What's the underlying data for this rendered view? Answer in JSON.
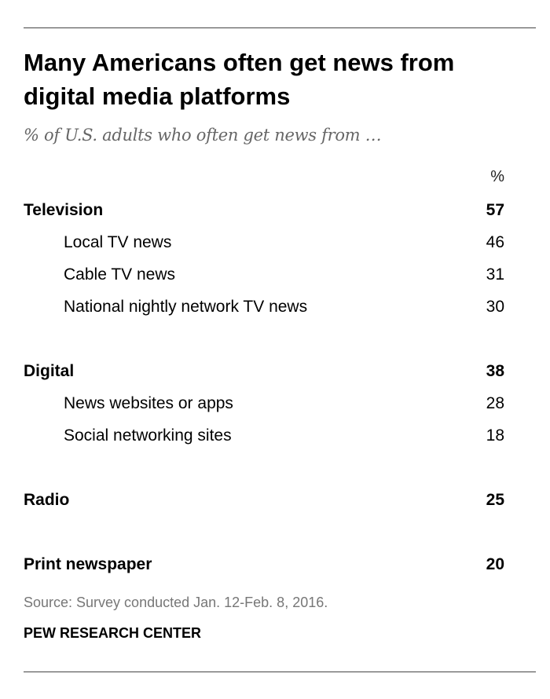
{
  "chart_data": {
    "type": "table",
    "title": "Many Americans often get news from digital media platforms",
    "subtitle": "% of U.S. adults who often get news from …",
    "unit_header": "%",
    "rows": [
      {
        "label": "Television",
        "value": 57,
        "level": "category"
      },
      {
        "label": "Local TV news",
        "value": 46,
        "level": "sub"
      },
      {
        "label": "Cable TV news",
        "value": 31,
        "level": "sub"
      },
      {
        "label": "National nightly network TV news",
        "value": 30,
        "level": "sub"
      },
      {
        "label": "Digital",
        "value": 38,
        "level": "category"
      },
      {
        "label": "News websites or apps",
        "value": 28,
        "level": "sub"
      },
      {
        "label": "Social networking sites",
        "value": 18,
        "level": "sub"
      },
      {
        "label": "Radio",
        "value": 25,
        "level": "category"
      },
      {
        "label": "Print newspaper",
        "value": 20,
        "level": "category"
      }
    ],
    "source": "Source: Survey conducted Jan. 12-Feb. 8, 2016.",
    "credit": "PEW RESEARCH CENTER"
  }
}
